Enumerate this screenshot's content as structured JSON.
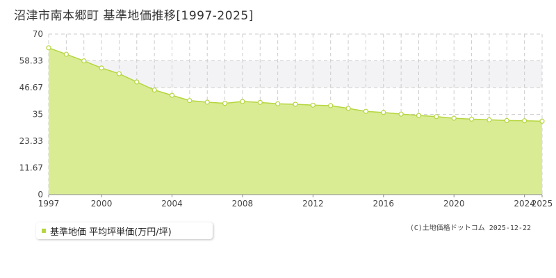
{
  "title": "沼津市南本郷町 基準地価推移[1997-2025]",
  "legend": {
    "label": "基準地価 平均坪単価(万円/坪)"
  },
  "credit": "(C)土地価格ドットコム 2025-12-22",
  "colors": {
    "area": "#d9ec94",
    "line": "#b5d63e",
    "band": "#f3f3f5",
    "grid": "#cccccc"
  },
  "chart_data": {
    "type": "area",
    "title": "沼津市南本郷町 基準地価推移[1997-2025]",
    "xlabel": "",
    "ylabel": "",
    "xlim": [
      1997,
      2025
    ],
    "ylim": [
      0,
      70
    ],
    "y_ticks": [
      "0",
      "11.67",
      "23.33",
      "35",
      "46.67",
      "58.33",
      "70"
    ],
    "x_ticks": [
      "1997",
      "2000",
      "2004",
      "2008",
      "2012",
      "2016",
      "2020",
      "2024",
      "2025"
    ],
    "grid": true,
    "series": [
      {
        "name": "基準地価 平均坪単価(万円/坪)",
        "x": [
          1997,
          1998,
          1999,
          2000,
          2001,
          2002,
          2003,
          2004,
          2005,
          2006,
          2007,
          2008,
          2009,
          2010,
          2011,
          2012,
          2013,
          2014,
          2015,
          2016,
          2017,
          2018,
          2019,
          2020,
          2021,
          2022,
          2023,
          2024,
          2025
        ],
        "values": [
          64.0,
          61.2,
          58.3,
          55.2,
          52.7,
          49.1,
          45.6,
          43.3,
          41.0,
          40.3,
          39.8,
          40.6,
          40.2,
          39.6,
          39.4,
          39.0,
          38.8,
          37.6,
          36.3,
          35.8,
          35.1,
          34.5,
          34.0,
          33.3,
          32.9,
          32.6,
          32.3,
          32.2,
          32.0
        ]
      }
    ]
  }
}
